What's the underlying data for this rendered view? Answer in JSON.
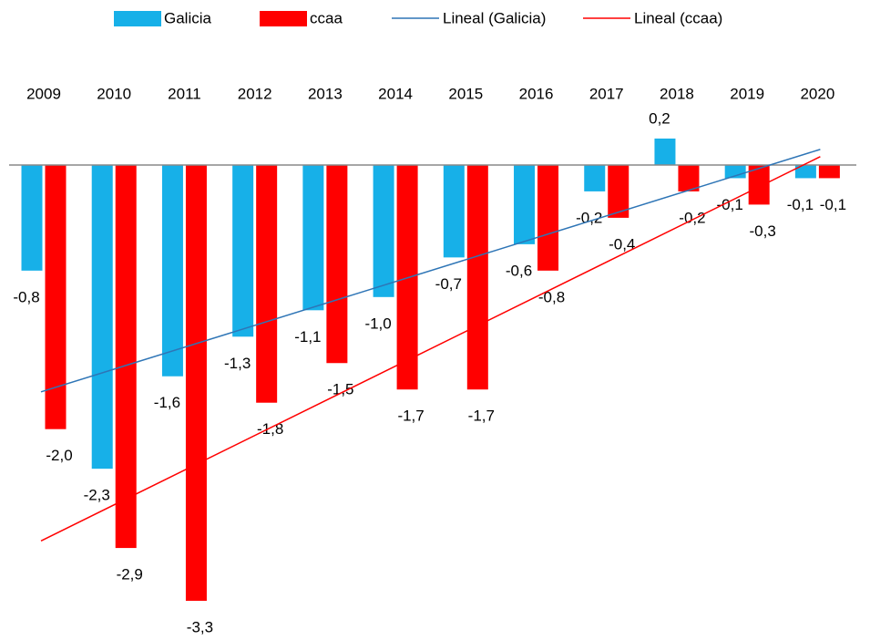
{
  "chart_data": {
    "type": "bar",
    "categories": [
      "2009",
      "2010",
      "2011",
      "2012",
      "2013",
      "2014",
      "2015",
      "2016",
      "2017",
      "2018",
      "2019",
      "2020"
    ],
    "series": [
      {
        "name": "Galicia",
        "color": "#17b0e8",
        "values": [
          -0.8,
          -2.3,
          -1.6,
          -1.3,
          -1.1,
          -1.0,
          -0.7,
          -0.6,
          -0.2,
          0.2,
          -0.1,
          -0.1
        ],
        "value_labels": [
          "-0,8",
          "-2,3",
          "-1,6",
          "-1,3",
          "-1,1",
          "-1,0",
          "-0,7",
          "-0,6",
          "-0,2",
          "0,2",
          "-0,1",
          "-0,1"
        ],
        "trendline": {
          "name": "Lineal (Galicia)",
          "color": "#2e75b6"
        }
      },
      {
        "name": "ccaa",
        "color": "#ff0000",
        "values": [
          -2.0,
          -2.9,
          -3.3,
          -1.8,
          -1.5,
          -1.7,
          -1.7,
          -0.8,
          -0.4,
          -0.2,
          -0.3,
          -0.1
        ],
        "value_labels": [
          "-2,0",
          "-2,9",
          "-3,3",
          "-1,8",
          "-1,5",
          "-1,7",
          "-1,7",
          "-0,8",
          "-0,4",
          "-0,2",
          "-0,3",
          "-0,1"
        ],
        "trendline": {
          "name": "Lineal (ccaa)",
          "color": "#ff0000"
        }
      }
    ],
    "ylim": [
      -3.5,
      0.4
    ],
    "legend": "top"
  }
}
